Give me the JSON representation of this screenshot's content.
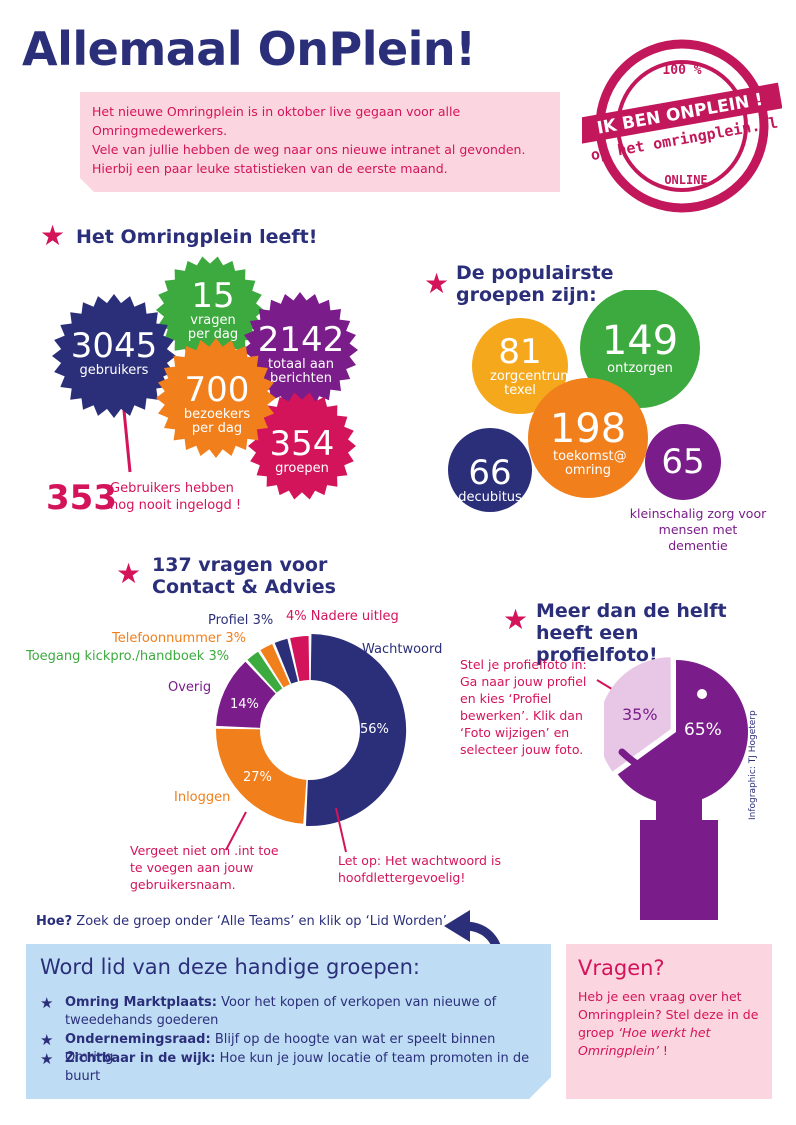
{
  "title": "Allemaal OnPlein!",
  "intro": [
    "Het nieuwe Omringplein is in oktober live gegaan voor alle",
    "Omringmedewerkers.",
    "Vele van jullie hebben de weg naar ons nieuwe intranet al gevonden.",
    "Hierbij een paar leuke statistieken van de eerste maand."
  ],
  "stamp": {
    "top": "100 %",
    "line1": "IK BEN ONPLEIN !",
    "line2": "op het omringplein.nl",
    "bottom": "ONLINE"
  },
  "leeft": {
    "title": "Het Omringplein leeft!",
    "stats": [
      {
        "value": "3045",
        "label": "gebruikers",
        "color": "#2b2f7a"
      },
      {
        "value": "15",
        "label": "vragen per dag",
        "color": "#3daa3f"
      },
      {
        "value": "2142",
        "label": "totaal aan berichten",
        "color": "#7a1c8a"
      },
      {
        "value": "700",
        "label": "bezoekers per dag",
        "color": "#f07f1c"
      },
      {
        "value": "354",
        "label": "groepen",
        "color": "#d4145a"
      }
    ],
    "never_value": "353",
    "never_text": "Gebruikers hebben nog nooit ingelogd !"
  },
  "groepen": {
    "title": "De populairste groepen zijn:",
    "items": [
      {
        "value": "81",
        "label": "zorgcentrum texel",
        "color": "#f5a81c"
      },
      {
        "value": "149",
        "label": "ontzorgen",
        "color": "#3daa3f"
      },
      {
        "value": "198",
        "label": "toekomst@ omring",
        "color": "#f07f1c"
      },
      {
        "value": "66",
        "label": "decubitus",
        "color": "#2b2f7a"
      },
      {
        "value": "65",
        "label": "kleinschalig zorg voor mensen met dementie",
        "color": "#7a1c8a"
      }
    ]
  },
  "vragen": {
    "title": "137 vragen voor Contact & Advies",
    "slices": [
      {
        "label": "Wachtwoord",
        "percent": 56,
        "display": "56%",
        "color": "#2b2f7a"
      },
      {
        "label": "Inloggen",
        "percent": 27,
        "display": "27%",
        "color": "#f07f1c"
      },
      {
        "label": "Overig",
        "percent": 14,
        "display": "14%",
        "color": "#7a1c8a"
      },
      {
        "label": "Toegang kickpro./handboek",
        "percent": 3,
        "display": "3%",
        "color": "#3daa3f"
      },
      {
        "label": "Telefoonnummer",
        "percent": 3,
        "display": "3%",
        "color": "#f07f1c"
      },
      {
        "label": "Profiel",
        "percent": 3,
        "display": "3%",
        "color": "#2b2f7a"
      },
      {
        "label": "Nadere uitleg",
        "percent": 4,
        "display": "4%",
        "color": "#d4145a"
      }
    ],
    "note_int": "Vergeet niet om .int toe te voegen aan jouw gebruikersnaam.",
    "note_ww": "Let op: Het wachtwoord is hoofdlettergevoelig!"
  },
  "profiel": {
    "title": "Meer dan de helft heeft een profielfoto!",
    "instructions": "Stel je profielfoto in: Ga naar jouw profiel en kies ‘Profiel bewerken’. Klik dan ‘Foto wijzigen’ en selecteer jouw foto.",
    "with_photo": 65,
    "with_display": "65%",
    "without_display": "35%"
  },
  "credit": "Infographic: TJ Hogeterp",
  "hoe": {
    "bold": "Hoe?",
    "text": " Zoek de groep onder ‘Alle Teams’ en klik op ‘Lid Worden’"
  },
  "join": {
    "title": "Word lid van deze handige groepen:",
    "items": [
      {
        "name": "Omring Marktplaats:",
        "desc": " Voor het kopen of verkopen van nieuwe of tweedehands goederen"
      },
      {
        "name": "Ondernemingsraad:",
        "desc": " Blijf op de hoogte van wat er speelt binnen Omring"
      },
      {
        "name": "Zichtbaar in de wijk:",
        "desc": " Hoe kun je jouw locatie of team promoten in de buurt"
      }
    ]
  },
  "questions": {
    "title": "Vragen?",
    "line1": "Heb je een vraag over het Omringplein? Stel deze in de groep",
    "italic": "‘Hoe werkt het Omringplein’",
    "end": " !"
  }
}
